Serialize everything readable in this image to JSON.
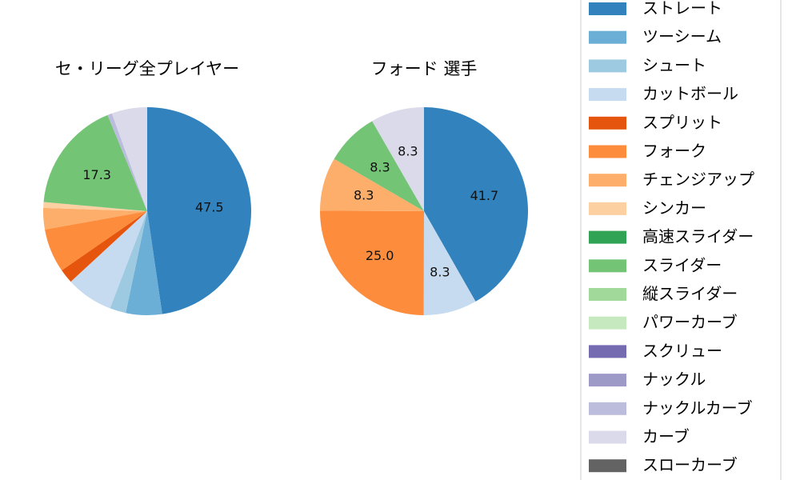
{
  "chart_data": [
    {
      "type": "pie",
      "title": "セ・リーグ全プレイヤー",
      "slices": [
        {
          "name": "ストレート",
          "value": 47.5,
          "color": "#3182bd",
          "label": "47.5"
        },
        {
          "name": "ツーシーム",
          "value": 5.6,
          "color": "#6baed6",
          "label": ""
        },
        {
          "name": "シュート",
          "value": 2.5,
          "color": "#9ecae1",
          "label": ""
        },
        {
          "name": "カットボール",
          "value": 7.3,
          "color": "#c6dbef",
          "label": ""
        },
        {
          "name": "スプリット",
          "value": 2.2,
          "color": "#e6550d",
          "label": ""
        },
        {
          "name": "フォーク",
          "value": 6.8,
          "color": "#fd8d3c",
          "label": ""
        },
        {
          "name": "チェンジアップ",
          "value": 3.3,
          "color": "#fdae6b",
          "label": ""
        },
        {
          "name": "シンカー",
          "value": 0.9,
          "color": "#fdd0a2",
          "label": ""
        },
        {
          "name": "高速スライダー",
          "value": 0.0,
          "color": "#31a354",
          "label": ""
        },
        {
          "name": "スライダー",
          "value": 17.3,
          "color": "#74c476",
          "label": "17.3"
        },
        {
          "name": "縦スライダー",
          "value": 0.0,
          "color": "#a1d99b",
          "label": ""
        },
        {
          "name": "パワーカーブ",
          "value": 0.0,
          "color": "#c7e9c0",
          "label": ""
        },
        {
          "name": "スクリュー",
          "value": 0.0,
          "color": "#756bb1",
          "label": ""
        },
        {
          "name": "ナックル",
          "value": 0.0,
          "color": "#9e9ac8",
          "label": ""
        },
        {
          "name": "ナックルカーブ",
          "value": 0.7,
          "color": "#bcbddc",
          "label": ""
        },
        {
          "name": "カーブ",
          "value": 5.5,
          "color": "#dadaeb",
          "label": ""
        },
        {
          "name": "スローカーブ",
          "value": 0.0,
          "color": "#636363",
          "label": ""
        }
      ]
    },
    {
      "type": "pie",
      "title": "フォード  選手",
      "slices": [
        {
          "name": "ストレート",
          "value": 41.7,
          "color": "#3182bd",
          "label": "41.7"
        },
        {
          "name": "カットボール",
          "value": 8.3,
          "color": "#c6dbef",
          "label": "8.3"
        },
        {
          "name": "フォーク",
          "value": 25.0,
          "color": "#fd8d3c",
          "label": "25.0"
        },
        {
          "name": "チェンジアップ",
          "value": 8.3,
          "color": "#fdae6b",
          "label": "8.3"
        },
        {
          "name": "スライダー",
          "value": 8.3,
          "color": "#74c476",
          "label": "8.3"
        },
        {
          "name": "カーブ",
          "value": 8.3,
          "color": "#dadaeb",
          "label": "8.3"
        }
      ]
    }
  ],
  "legend": {
    "placement": "right",
    "items": [
      {
        "name": "ストレート",
        "color": "#3182bd"
      },
      {
        "name": "ツーシーム",
        "color": "#6baed6"
      },
      {
        "name": "シュート",
        "color": "#9ecae1"
      },
      {
        "name": "カットボール",
        "color": "#c6dbef"
      },
      {
        "name": "スプリット",
        "color": "#e6550d"
      },
      {
        "name": "フォーク",
        "color": "#fd8d3c"
      },
      {
        "name": "チェンジアップ",
        "color": "#fdae6b"
      },
      {
        "name": "シンカー",
        "color": "#fdd0a2"
      },
      {
        "name": "高速スライダー",
        "color": "#31a354"
      },
      {
        "name": "スライダー",
        "color": "#74c476"
      },
      {
        "name": "縦スライダー",
        "color": "#a1d99b"
      },
      {
        "name": "パワーカーブ",
        "color": "#c7e9c0"
      },
      {
        "name": "スクリュー",
        "color": "#756bb1"
      },
      {
        "name": "ナックル",
        "color": "#9e9ac8"
      },
      {
        "name": "ナックルカーブ",
        "color": "#bcbddc"
      },
      {
        "name": "カーブ",
        "color": "#dadaeb"
      },
      {
        "name": "スローカーブ",
        "color": "#636363"
      }
    ]
  }
}
